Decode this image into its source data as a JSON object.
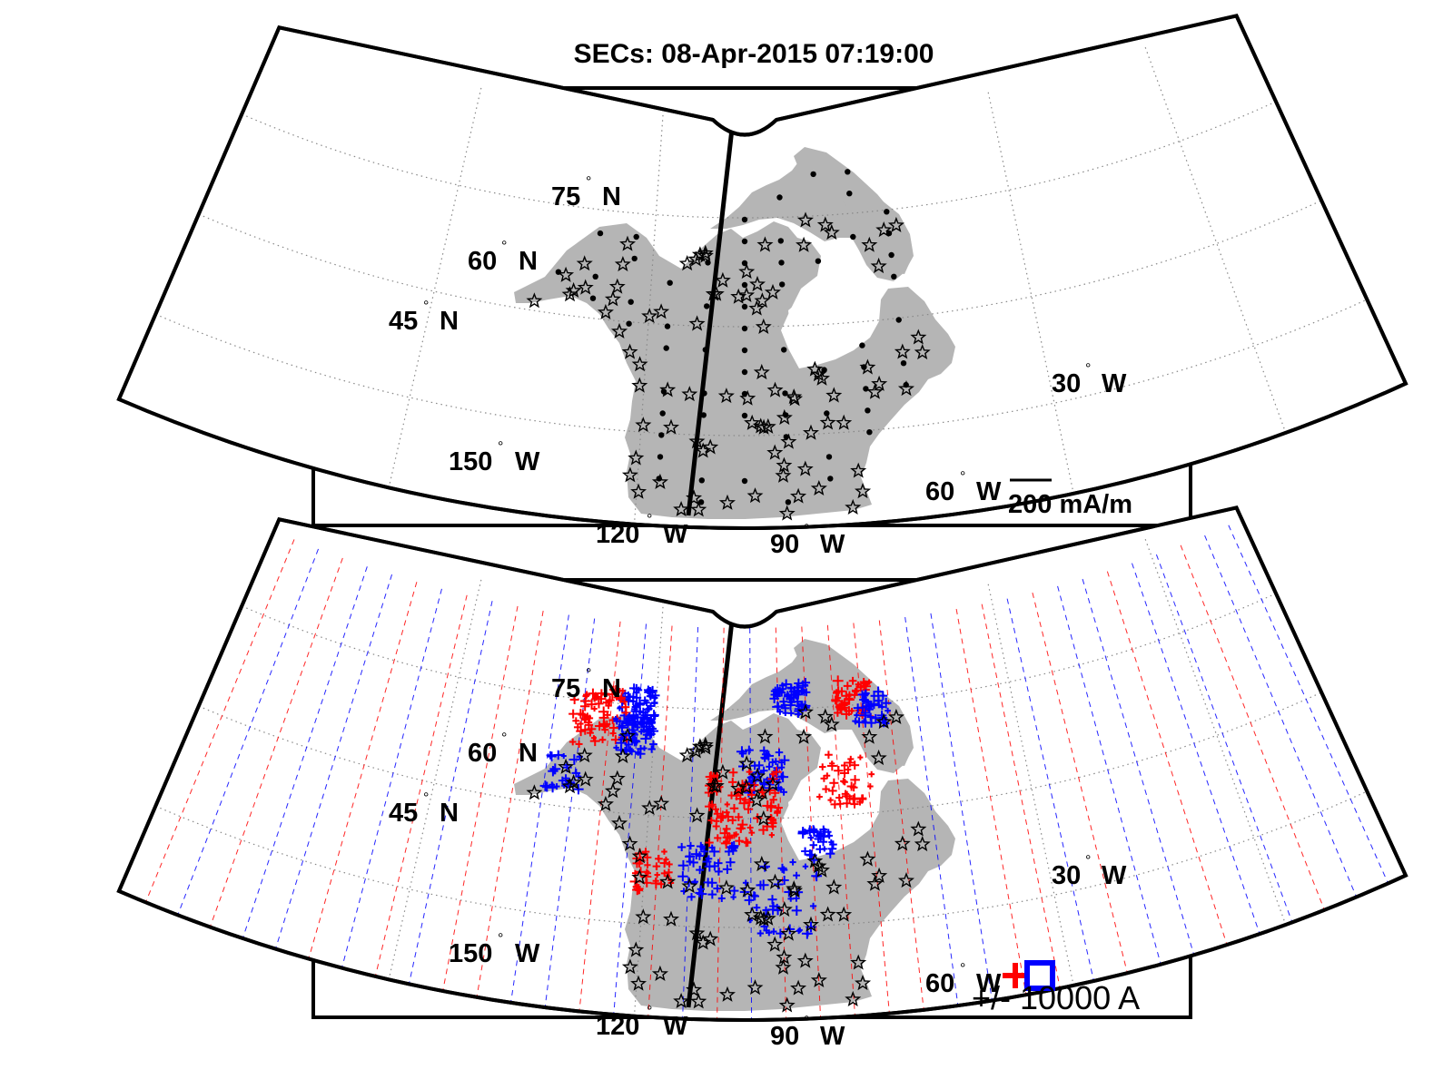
{
  "figure": {
    "title": "SECs: 08-Apr-2015 07:19:00"
  },
  "panels": [
    {
      "id": "top",
      "name": "equivalent-currents-panel",
      "lat_labels": [
        {
          "deg": "75",
          "hemi": "N"
        },
        {
          "deg": "60",
          "hemi": "N"
        },
        {
          "deg": "45",
          "hemi": "N"
        }
      ],
      "lon_labels": [
        {
          "deg": "150",
          "hemi": "W"
        },
        {
          "deg": "120",
          "hemi": "W"
        },
        {
          "deg": "90",
          "hemi": "W"
        },
        {
          "deg": "60",
          "hemi": "W"
        },
        {
          "deg": "30",
          "hemi": "W"
        }
      ],
      "scale_label": "200 mA/m"
    },
    {
      "id": "bottom",
      "name": "sec-amplitude-panel",
      "lat_labels": [
        {
          "deg": "75",
          "hemi": "N"
        },
        {
          "deg": "60",
          "hemi": "N"
        },
        {
          "deg": "45",
          "hemi": "N"
        }
      ],
      "lon_labels": [
        {
          "deg": "150",
          "hemi": "W"
        },
        {
          "deg": "120",
          "hemi": "W"
        },
        {
          "deg": "90",
          "hemi": "W"
        },
        {
          "deg": "60",
          "hemi": "W"
        },
        {
          "deg": "30",
          "hemi": "W"
        }
      ],
      "legend_label": "+/- 10000 A"
    }
  ],
  "map": {
    "projection": "conic sector, North America",
    "lat_range_deg": [
      40,
      85
    ],
    "lon_range_deg": [
      -160,
      -25
    ],
    "highlight_meridian_deg": -105,
    "colors": {
      "land": "#b5b5b5",
      "positive": "#ff0000",
      "negative": "#0000ff",
      "grid": "#888888"
    }
  }
}
